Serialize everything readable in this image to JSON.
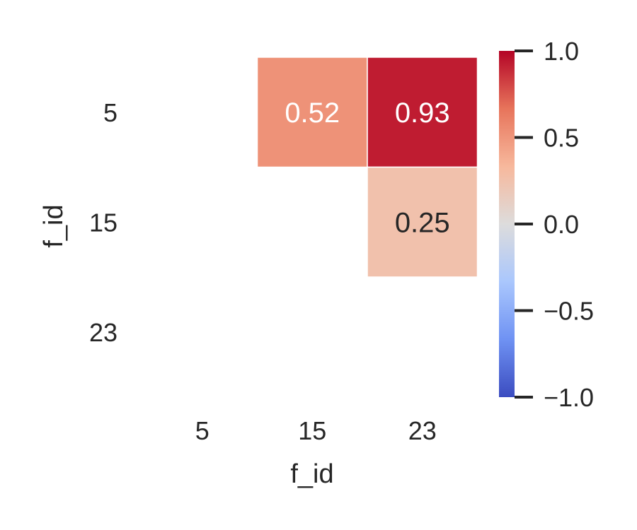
{
  "chart_data": {
    "type": "heatmap",
    "title": "",
    "xlabel": "f_id",
    "ylabel": "f_id",
    "x_categories": [
      "5",
      "15",
      "23"
    ],
    "y_categories": [
      "5",
      "15",
      "23"
    ],
    "cells": [
      {
        "row": 0,
        "col": 1,
        "value": 0.52,
        "label": "0.52"
      },
      {
        "row": 0,
        "col": 2,
        "value": 0.93,
        "label": "0.93"
      },
      {
        "row": 1,
        "col": 2,
        "value": 0.25,
        "label": "0.25"
      }
    ],
    "vmin": -1.0,
    "vmax": 1.0,
    "colormap": "coolwarm",
    "colormap_stops": [
      "#3b4cc0",
      "#6f92f3",
      "#aac7fd",
      "#dddcdc",
      "#f7b89c",
      "#e7745b",
      "#b40426"
    ],
    "colorbar_ticks": [
      1.0,
      0.5,
      0.0,
      -0.5,
      -1.0
    ],
    "colorbar_tick_labels": [
      "1.0",
      "0.5",
      "0.0",
      "−0.5",
      "−1.0"
    ],
    "masked": "lower triangle and diagonal"
  }
}
